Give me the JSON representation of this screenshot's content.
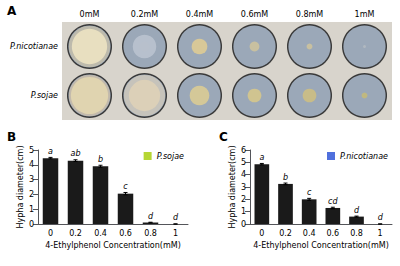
{
  "chart_data": [
    {
      "type": "plates",
      "title": "A",
      "categories": [
        "0mM",
        "0.2mM",
        "0.4mM",
        "0.6mM",
        "0.8mM",
        "1mM"
      ],
      "plate_bg": "#d8d4cc",
      "plate_agar_color": "#9ba8b8",
      "plate_border_color": "#3a3a3a",
      "series": [
        {
          "name": "P.nicotianae",
          "values": [
            0.36,
            0.1,
            0.16,
            0.1,
            0.06,
            0.03
          ],
          "colors": [
            "#e8dfc0",
            "#b8c0cc",
            "#d8c898",
            "#c8c0a0",
            "#c8c0a0",
            "#b0b8c0"
          ],
          "halo_radii": [
            0.42,
            0.24,
            0.0,
            0.0,
            0.0,
            0.0
          ],
          "halo_colors": [
            "#c8c0a8",
            "#c0c8d4",
            "#9ba8b8",
            "#9ba8b8",
            "#9ba8b8",
            "#9ba8b8"
          ]
        },
        {
          "name": "P.sojae",
          "values": [
            0.38,
            0.32,
            0.2,
            0.14,
            0.14,
            0.06
          ],
          "colors": [
            "#e0d4b0",
            "#dcd0b8",
            "#d4c898",
            "#d0c490",
            "#c8bc88",
            "#c0b880"
          ],
          "halo_radii": [
            0.42,
            0.42,
            0.0,
            0.0,
            0.0,
            0.0
          ],
          "halo_colors": [
            "#d0c0a8",
            "#d4ccbc",
            "#9ba8b8",
            "#9ba8b8",
            "#9ba8b8",
            "#9ba8b8"
          ]
        }
      ]
    },
    {
      "type": "bar",
      "title": "B",
      "categories": [
        "0",
        "0.2",
        "0.4",
        "0.6",
        "0.8",
        "1"
      ],
      "series": [
        {
          "name": "P.sojae",
          "color": "#1a1a1a",
          "values": [
            4.45,
            4.28,
            3.9,
            2.05,
            0.1,
            0.0
          ],
          "errors": [
            0.05,
            0.06,
            0.07,
            0.08,
            0.02,
            0.01
          ],
          "annotations": [
            "a",
            "ab",
            "b",
            "c",
            "d",
            "d"
          ]
        }
      ],
      "xlabel": "4-Ethylphenol Concentration(mM)",
      "ylabel": "Hypha diameter(cm)",
      "ylim": [
        0,
        5
      ],
      "yticks": [
        0,
        1,
        2,
        3,
        4,
        5
      ],
      "grid": false,
      "legend": "upper right"
    },
    {
      "type": "bar",
      "title": "C",
      "categories": [
        "0",
        "0.2",
        "0.4",
        "0.6",
        "0.8",
        "1"
      ],
      "series": [
        {
          "name": "P.nicotianae",
          "color": "#1a1a1a",
          "values": [
            4.85,
            3.25,
            2.0,
            1.3,
            0.6,
            0.0
          ],
          "errors": [
            0.06,
            0.07,
            0.08,
            0.06,
            0.04,
            0.01
          ],
          "annotations": [
            "a",
            "b",
            "c",
            "cd",
            "d",
            "d"
          ]
        }
      ],
      "xlabel": "4-Ethylphenol Concentration(mM)",
      "ylabel": "Hypha diameter(cm)",
      "ylim": [
        0,
        6
      ],
      "yticks": [
        0,
        1,
        2,
        3,
        4,
        5,
        6
      ],
      "grid": false,
      "legend": "upper right"
    }
  ]
}
